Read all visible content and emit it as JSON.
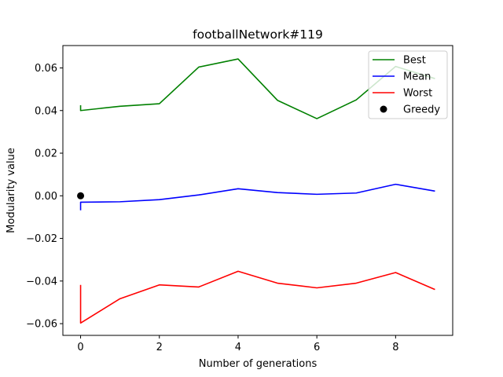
{
  "chart_data": {
    "type": "line",
    "title": "footballNetwork#119",
    "xlabel": "Number of generations",
    "ylabel": "Modularity value",
    "xlim": [
      -0.45,
      9.45
    ],
    "ylim": [
      -0.0655,
      0.0705
    ],
    "x_ticks": [
      0,
      2,
      4,
      6,
      8
    ],
    "x_tick_labels": [
      "0",
      "2",
      "4",
      "6",
      "8"
    ],
    "y_ticks": [
      -0.06,
      -0.04,
      -0.02,
      0.0,
      0.02,
      0.04,
      0.06
    ],
    "y_tick_labels": [
      "−0.06",
      "−0.04",
      "−0.02",
      "0.00",
      "0.02",
      "0.04",
      "0.06"
    ],
    "grid": false,
    "legend_position": "top-right",
    "series": [
      {
        "name": "Best",
        "color": "#008000",
        "kind": "line",
        "x": [
          0,
          0,
          1,
          2,
          3,
          4,
          5,
          6,
          7,
          8,
          9
        ],
        "y": [
          0.0425,
          0.04,
          0.042,
          0.0432,
          0.0604,
          0.0642,
          0.0448,
          0.0362,
          0.045,
          0.0607,
          0.055
        ]
      },
      {
        "name": "Mean",
        "color": "#0000ff",
        "kind": "line",
        "x": [
          0,
          0,
          1,
          2,
          3,
          4,
          5,
          6,
          7,
          8,
          9
        ],
        "y": [
          -0.0068,
          -0.003,
          -0.0028,
          -0.0018,
          0.0004,
          0.0033,
          0.0015,
          0.0007,
          0.0013,
          0.0054,
          0.0022
        ]
      },
      {
        "name": "Worst",
        "color": "#ff0000",
        "kind": "line",
        "x": [
          0,
          0,
          1,
          2,
          3,
          4,
          5,
          6,
          7,
          8,
          9
        ],
        "y": [
          -0.0418,
          -0.0597,
          -0.0483,
          -0.0418,
          -0.0428,
          -0.0354,
          -0.041,
          -0.0432,
          -0.041,
          -0.036,
          -0.044
        ]
      },
      {
        "name": "Greedy",
        "color": "#000000",
        "kind": "marker",
        "x": [
          0
        ],
        "y": [
          0.0
        ]
      }
    ]
  }
}
